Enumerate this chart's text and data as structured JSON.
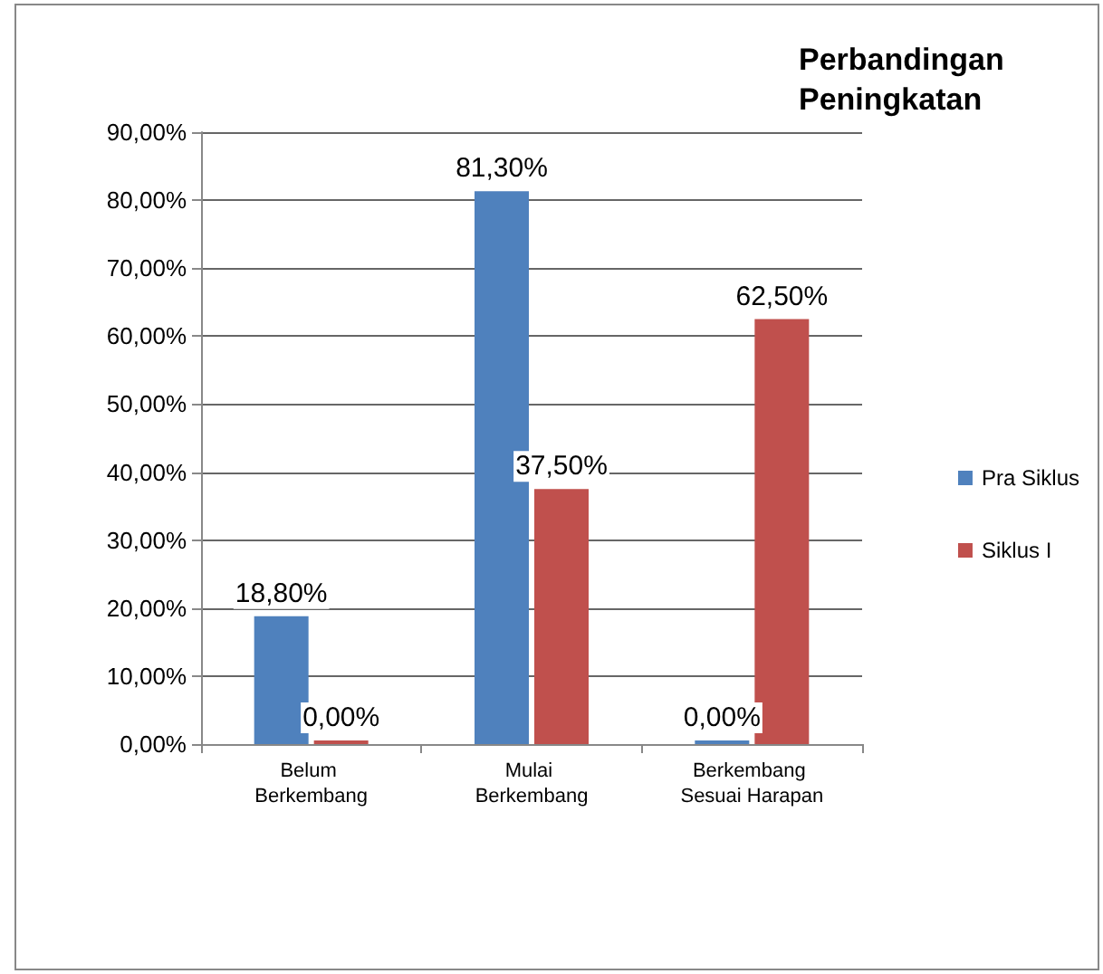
{
  "chart_data": {
    "type": "bar",
    "title": "Perbandingan Peningkatan",
    "categories": [
      "Belum Berkembang",
      "Mulai Berkembang",
      "Berkembang Sesuai Harapan"
    ],
    "series": [
      {
        "name": "Pra Siklus",
        "color": "#4f81bd",
        "values": [
          18.8,
          81.3,
          0
        ],
        "value_labels": [
          "18,80%",
          "81,30%",
          "0,00%"
        ]
      },
      {
        "name": "Siklus I",
        "color": "#c0504d",
        "values": [
          0,
          37.5,
          62.5
        ],
        "value_labels": [
          "0,00%",
          "37,50%",
          "62,50%"
        ]
      }
    ],
    "ylim": [
      0,
      90
    ],
    "yticks": [
      {
        "value": 0,
        "label": "0,00%"
      },
      {
        "value": 10,
        "label": "10,00%"
      },
      {
        "value": 20,
        "label": "20,00%"
      },
      {
        "value": 30,
        "label": "30,00%"
      },
      {
        "value": 40,
        "label": "40,00%"
      },
      {
        "value": 50,
        "label": "50,00%"
      },
      {
        "value": 60,
        "label": "60,00%"
      },
      {
        "value": 70,
        "label": "70,00%"
      },
      {
        "value": 80,
        "label": "80,00%"
      },
      {
        "value": 90,
        "label": "90,00%"
      }
    ],
    "grid": "y",
    "legend": "right"
  }
}
